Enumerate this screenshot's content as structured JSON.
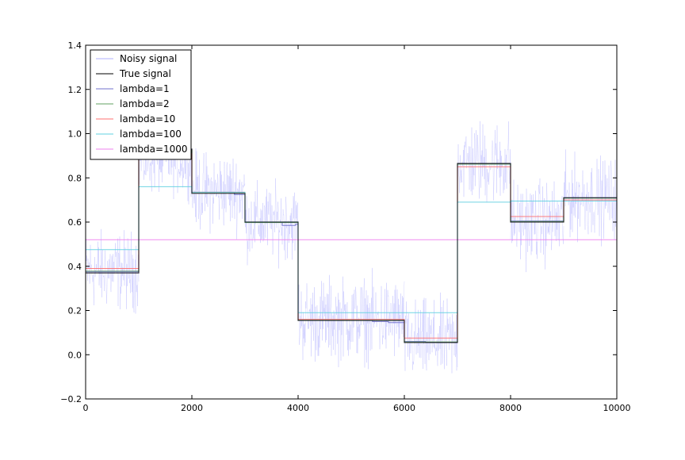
{
  "chart_data": {
    "type": "line",
    "title": "",
    "xlabel": "",
    "ylabel": "",
    "xlim": [
      0,
      10000
    ],
    "ylim": [
      -0.2,
      1.4
    ],
    "xticks": [
      0,
      2000,
      4000,
      6000,
      8000,
      10000
    ],
    "yticks": [
      -0.2,
      0.0,
      0.2,
      0.4,
      0.6,
      0.8,
      1.0,
      1.2,
      1.4
    ],
    "xtick_labels": [
      "0",
      "2000",
      "4000",
      "6000",
      "8000",
      "10000"
    ],
    "ytick_labels": [
      "−0.2",
      "0.0",
      "0.2",
      "0.4",
      "0.6",
      "0.8",
      "1.0",
      "1.2",
      "1.4"
    ],
    "grid": false,
    "legend_position": "top-left",
    "noise_band": {
      "name": "Noisy signal",
      "color": "#b0b0ff",
      "segments": [
        {
          "x": [
            0,
            1000
          ],
          "center": 0.38,
          "low": 0.15,
          "high": 0.61
        },
        {
          "x": [
            1000,
            2000
          ],
          "center": 0.88,
          "low": 0.68,
          "high": 1.08
        },
        {
          "x": [
            2000,
            3000
          ],
          "center": 0.74,
          "low": 0.51,
          "high": 0.97
        },
        {
          "x": [
            3000,
            4000
          ],
          "center": 0.6,
          "low": 0.38,
          "high": 0.82
        },
        {
          "x": [
            4000,
            6000
          ],
          "center": 0.16,
          "low": -0.09,
          "high": 0.4
        },
        {
          "x": [
            6000,
            7000
          ],
          "center": 0.06,
          "low": -0.17,
          "high": 0.31
        },
        {
          "x": [
            7000,
            8000
          ],
          "center": 0.87,
          "low": 0.62,
          "high": 1.12
        },
        {
          "x": [
            8000,
            9000
          ],
          "center": 0.6,
          "low": 0.36,
          "high": 0.85
        },
        {
          "x": [
            9000,
            10000
          ],
          "center": 0.71,
          "low": 0.46,
          "high": 0.93
        }
      ]
    },
    "series": [
      {
        "name": "True signal",
        "color": "#000000",
        "x": [
          0,
          1000,
          1000,
          2000,
          2000,
          3000,
          3000,
          4000,
          4000,
          6000,
          6000,
          7000,
          7000,
          8000,
          8000,
          9000,
          9000,
          10000
        ],
        "y": [
          0.37,
          0.37,
          0.93,
          0.93,
          0.73,
          0.73,
          0.6,
          0.6,
          0.155,
          0.155,
          0.055,
          0.055,
          0.865,
          0.865,
          0.6,
          0.6,
          0.71,
          0.71
        ]
      },
      {
        "name": "lambda=1",
        "color": "#7070cc",
        "x": [
          0,
          1000,
          1000,
          2000,
          2000,
          2800,
          2800,
          3000,
          3000,
          3700,
          3700,
          3950,
          3950,
          4000,
          4000,
          5000,
          5000,
          5400,
          5400,
          5700,
          5700,
          6000,
          6000,
          6400,
          6400,
          7000,
          7000,
          8000,
          8000,
          9000,
          9000,
          10000
        ],
        "y": [
          0.375,
          0.375,
          0.93,
          0.93,
          0.735,
          0.735,
          0.725,
          0.725,
          0.6,
          0.6,
          0.585,
          0.585,
          0.59,
          0.59,
          0.155,
          0.155,
          0.155,
          0.155,
          0.15,
          0.15,
          0.145,
          0.145,
          0.06,
          0.06,
          0.055,
          0.055,
          0.865,
          0.865,
          0.605,
          0.605,
          0.71,
          0.71
        ]
      },
      {
        "name": "lambda=2",
        "color": "#60a060",
        "x": [
          0,
          1000,
          1000,
          2000,
          2000,
          3000,
          3000,
          4000,
          4000,
          6000,
          6000,
          7000,
          7000,
          8000,
          8000,
          9000,
          9000,
          10000
        ],
        "y": [
          0.378,
          0.378,
          0.925,
          0.925,
          0.733,
          0.733,
          0.598,
          0.598,
          0.156,
          0.156,
          0.058,
          0.058,
          0.862,
          0.862,
          0.603,
          0.603,
          0.708,
          0.708
        ]
      },
      {
        "name": "lambda=10",
        "color": "#ff7070",
        "x": [
          0,
          1000,
          1000,
          2000,
          2000,
          3000,
          3000,
          4000,
          4000,
          6000,
          6000,
          7000,
          7000,
          8000,
          8000,
          9000,
          9000,
          10000
        ],
        "y": [
          0.39,
          0.39,
          0.91,
          0.91,
          0.735,
          0.735,
          0.6,
          0.6,
          0.16,
          0.16,
          0.075,
          0.075,
          0.85,
          0.85,
          0.625,
          0.625,
          0.7,
          0.7
        ]
      },
      {
        "name": "lambda=100",
        "color": "#60d0e0",
        "x": [
          0,
          1000,
          1000,
          2000,
          2000,
          3000,
          3000,
          4000,
          4000,
          7000,
          7000,
          8000,
          8000,
          9000,
          9000,
          10000
        ],
        "y": [
          0.475,
          0.475,
          0.76,
          0.76,
          0.735,
          0.735,
          0.6,
          0.6,
          0.19,
          0.19,
          0.69,
          0.69,
          0.695,
          0.695,
          0.695,
          0.695
        ]
      },
      {
        "name": "lambda=1000",
        "color": "#ee80ee",
        "x": [
          0,
          10000
        ],
        "y": [
          0.52,
          0.52
        ]
      }
    ],
    "legend": [
      "Noisy signal",
      "True signal",
      "lambda=1",
      "lambda=2",
      "lambda=10",
      "lambda=100",
      "lambda=1000"
    ]
  }
}
